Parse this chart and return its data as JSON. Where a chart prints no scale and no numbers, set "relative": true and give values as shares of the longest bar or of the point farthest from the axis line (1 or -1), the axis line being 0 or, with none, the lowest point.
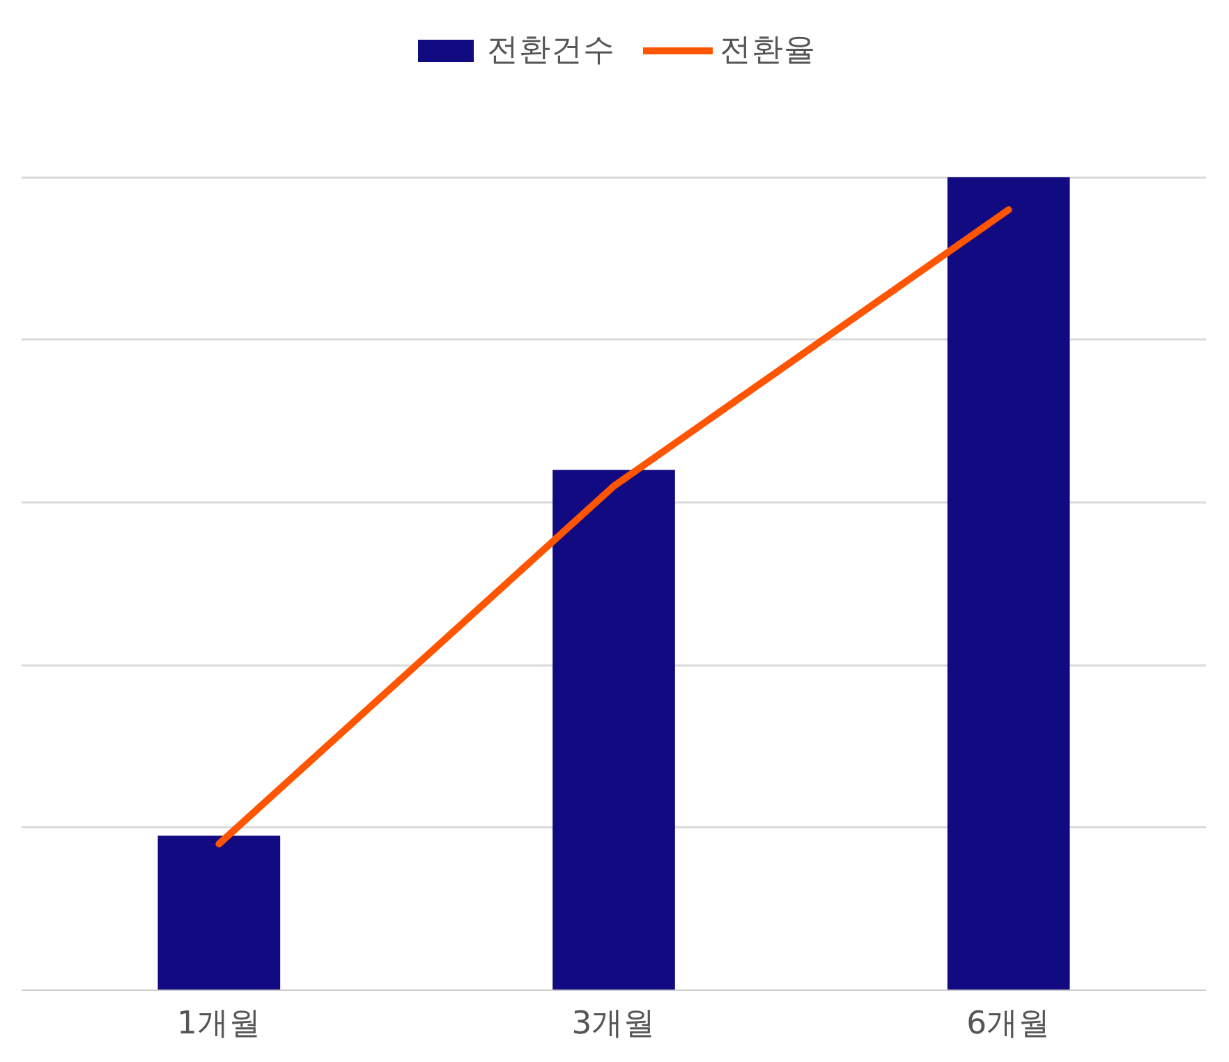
{
  "chart_data": {
    "type": "bar",
    "relative": true,
    "categories": [
      "1개월",
      "3개월",
      "6개월"
    ],
    "series": [
      {
        "name": "전환건수",
        "color": "#120a80",
        "values": [
          0.19,
          0.64,
          1
        ]
      },
      {
        "name": "전환율",
        "type": "line",
        "color": "#ff5500",
        "values": [
          0.18,
          0.62,
          0.96
        ]
      }
    ],
    "grid": "y",
    "legend": "top",
    "marker": "none"
  }
}
